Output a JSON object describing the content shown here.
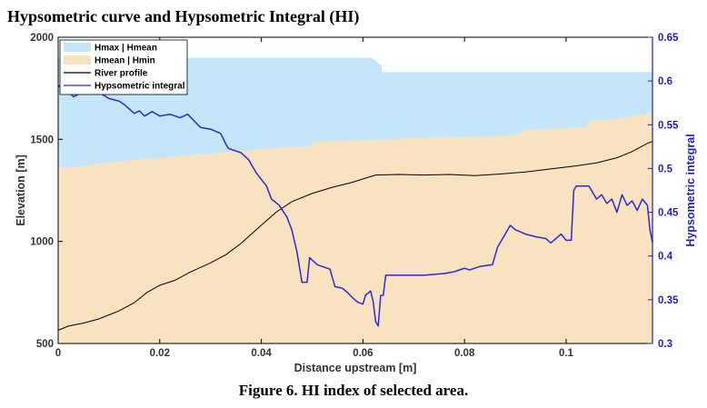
{
  "title": "Hypsometric curve and Hypsometric Integral (HI)",
  "caption": "Figure 6. HI index of selected area.",
  "colors": {
    "hmax_hmean": "#c5e6f8",
    "hmean_hmin": "#f8e2bf",
    "river_profile": "#000000",
    "hypsometric_integral": "#2a2ad6",
    "right_axis": "#1f1fc8"
  },
  "chart_data": {
    "type": "area",
    "xlabel": "Distance upstream [m]",
    "ylabel": "Elevation [m]",
    "y2label": "Hypsometric integral",
    "xlim": [
      0,
      0.117
    ],
    "ylim": [
      500,
      2000
    ],
    "y2lim": [
      0.3,
      0.65
    ],
    "x_ticks": [
      0,
      0.02,
      0.04,
      0.06,
      0.08,
      0.1
    ],
    "x_tick_labels": [
      "0",
      "0.02",
      "0.04",
      "0.06",
      "0.08",
      "0.1"
    ],
    "y_ticks": [
      500,
      1000,
      1500,
      2000
    ],
    "y_tick_labels": [
      "500",
      "1000",
      "1500",
      "2000"
    ],
    "y2_ticks": [
      0.3,
      0.35,
      0.4,
      0.45,
      0.5,
      0.55,
      0.6,
      0.65
    ],
    "y2_tick_labels": [
      "0.3",
      "0.35",
      "0.4",
      "0.45",
      "0.5",
      "0.55",
      "0.6",
      "0.65"
    ],
    "legend_position": "top-left",
    "legend": [
      {
        "label": "Hmax | Hmean",
        "kind": "fill",
        "color": "#c5e6f8"
      },
      {
        "label": "Hmean | Hmin",
        "kind": "fill",
        "color": "#f8e2bf"
      },
      {
        "label": "River profile",
        "kind": "line",
        "color": "#000000"
      },
      {
        "label": "Hypsometric integral",
        "kind": "line",
        "color": "#2a2ad6"
      }
    ],
    "series": [
      {
        "name": "Hmax",
        "axis": "left",
        "points": [
          [
            0,
            1900
          ],
          [
            0.0617,
            1900
          ],
          [
            0.0637,
            1860
          ],
          [
            0.0637,
            1830
          ],
          [
            0.117,
            1830
          ]
        ]
      },
      {
        "name": "Hmean",
        "axis": "left",
        "points": [
          [
            0,
            1360
          ],
          [
            0.002,
            1360
          ],
          [
            0.004,
            1365
          ],
          [
            0.008,
            1380
          ],
          [
            0.012,
            1390
          ],
          [
            0.016,
            1400
          ],
          [
            0.02,
            1410
          ],
          [
            0.025,
            1420
          ],
          [
            0.03,
            1430
          ],
          [
            0.035,
            1440
          ],
          [
            0.04,
            1452
          ],
          [
            0.045,
            1460
          ],
          [
            0.05,
            1468
          ],
          [
            0.0505,
            1490
          ],
          [
            0.06,
            1495
          ],
          [
            0.07,
            1505
          ],
          [
            0.08,
            1510
          ],
          [
            0.09,
            1520
          ],
          [
            0.0925,
            1545
          ],
          [
            0.1,
            1555
          ],
          [
            0.104,
            1560
          ],
          [
            0.1045,
            1590
          ],
          [
            0.11,
            1600
          ],
          [
            0.115,
            1620
          ],
          [
            0.117,
            1625
          ]
        ]
      },
      {
        "name": "Hmin",
        "axis": "left",
        "points": [
          [
            0,
            500
          ],
          [
            0.117,
            500
          ]
        ]
      },
      {
        "name": "River profile",
        "axis": "left",
        "points": [
          [
            0,
            565
          ],
          [
            0.002,
            585
          ],
          [
            0.005,
            600
          ],
          [
            0.008,
            620
          ],
          [
            0.012,
            660
          ],
          [
            0.015,
            700
          ],
          [
            0.0175,
            750
          ],
          [
            0.02,
            785
          ],
          [
            0.023,
            810
          ],
          [
            0.026,
            850
          ],
          [
            0.03,
            895
          ],
          [
            0.033,
            935
          ],
          [
            0.036,
            990
          ],
          [
            0.04,
            1080
          ],
          [
            0.043,
            1145
          ],
          [
            0.046,
            1195
          ],
          [
            0.05,
            1235
          ],
          [
            0.054,
            1265
          ],
          [
            0.058,
            1290
          ],
          [
            0.0605,
            1310
          ],
          [
            0.0625,
            1325
          ],
          [
            0.067,
            1328
          ],
          [
            0.072,
            1325
          ],
          [
            0.077,
            1328
          ],
          [
            0.082,
            1322
          ],
          [
            0.087,
            1330
          ],
          [
            0.092,
            1340
          ],
          [
            0.097,
            1355
          ],
          [
            0.102,
            1370
          ],
          [
            0.106,
            1385
          ],
          [
            0.11,
            1410
          ],
          [
            0.113,
            1440
          ],
          [
            0.116,
            1480
          ],
          [
            0.117,
            1490
          ]
        ]
      },
      {
        "name": "Hypsometric integral",
        "axis": "right",
        "points": [
          [
            0,
            0.595
          ],
          [
            0.001,
            0.59
          ],
          [
            0.002,
            0.588
          ],
          [
            0.003,
            0.582
          ],
          [
            0.004,
            0.585
          ],
          [
            0.005,
            0.588
          ],
          [
            0.008,
            0.587
          ],
          [
            0.01,
            0.58
          ],
          [
            0.012,
            0.577
          ],
          [
            0.013,
            0.573
          ],
          [
            0.015,
            0.563
          ],
          [
            0.016,
            0.566
          ],
          [
            0.017,
            0.56
          ],
          [
            0.0185,
            0.565
          ],
          [
            0.02,
            0.56
          ],
          [
            0.022,
            0.562
          ],
          [
            0.024,
            0.558
          ],
          [
            0.0255,
            0.562
          ],
          [
            0.027,
            0.553
          ],
          [
            0.028,
            0.547
          ],
          [
            0.03,
            0.545
          ],
          [
            0.032,
            0.54
          ],
          [
            0.033,
            0.528
          ],
          [
            0.0335,
            0.523
          ],
          [
            0.035,
            0.52
          ],
          [
            0.036,
            0.518
          ],
          [
            0.0375,
            0.51
          ],
          [
            0.039,
            0.495
          ],
          [
            0.041,
            0.48
          ],
          [
            0.042,
            0.465
          ],
          [
            0.0435,
            0.458
          ],
          [
            0.045,
            0.445
          ],
          [
            0.046,
            0.43
          ],
          [
            0.047,
            0.405
          ],
          [
            0.048,
            0.37
          ],
          [
            0.0485,
            0.37
          ],
          [
            0.049,
            0.37
          ],
          [
            0.0495,
            0.398
          ],
          [
            0.051,
            0.39
          ],
          [
            0.052,
            0.388
          ],
          [
            0.0535,
            0.385
          ],
          [
            0.0545,
            0.365
          ],
          [
            0.056,
            0.363
          ],
          [
            0.057,
            0.358
          ],
          [
            0.058,
            0.352
          ],
          [
            0.059,
            0.347
          ],
          [
            0.06,
            0.345
          ],
          [
            0.0605,
            0.355
          ],
          [
            0.0615,
            0.36
          ],
          [
            0.062,
            0.348
          ],
          [
            0.0625,
            0.325
          ],
          [
            0.063,
            0.32
          ],
          [
            0.0635,
            0.355
          ],
          [
            0.064,
            0.355
          ],
          [
            0.0645,
            0.378
          ],
          [
            0.067,
            0.378
          ],
          [
            0.072,
            0.378
          ],
          [
            0.076,
            0.38
          ],
          [
            0.078,
            0.382
          ],
          [
            0.08,
            0.386
          ],
          [
            0.081,
            0.384
          ],
          [
            0.083,
            0.388
          ],
          [
            0.0855,
            0.39
          ],
          [
            0.0865,
            0.41
          ],
          [
            0.0875,
            0.42
          ],
          [
            0.089,
            0.435
          ],
          [
            0.09,
            0.43
          ],
          [
            0.092,
            0.425
          ],
          [
            0.094,
            0.422
          ],
          [
            0.096,
            0.42
          ],
          [
            0.097,
            0.415
          ],
          [
            0.099,
            0.425
          ],
          [
            0.1,
            0.418
          ],
          [
            0.101,
            0.418
          ],
          [
            0.1015,
            0.475
          ],
          [
            0.102,
            0.48
          ],
          [
            0.103,
            0.48
          ],
          [
            0.1045,
            0.48
          ],
          [
            0.106,
            0.465
          ],
          [
            0.107,
            0.47
          ],
          [
            0.108,
            0.46
          ],
          [
            0.109,
            0.465
          ],
          [
            0.11,
            0.45
          ],
          [
            0.111,
            0.47
          ],
          [
            0.112,
            0.458
          ],
          [
            0.113,
            0.463
          ],
          [
            0.114,
            0.452
          ],
          [
            0.115,
            0.465
          ],
          [
            0.116,
            0.458
          ],
          [
            0.1165,
            0.43
          ],
          [
            0.117,
            0.415
          ]
        ]
      }
    ]
  }
}
